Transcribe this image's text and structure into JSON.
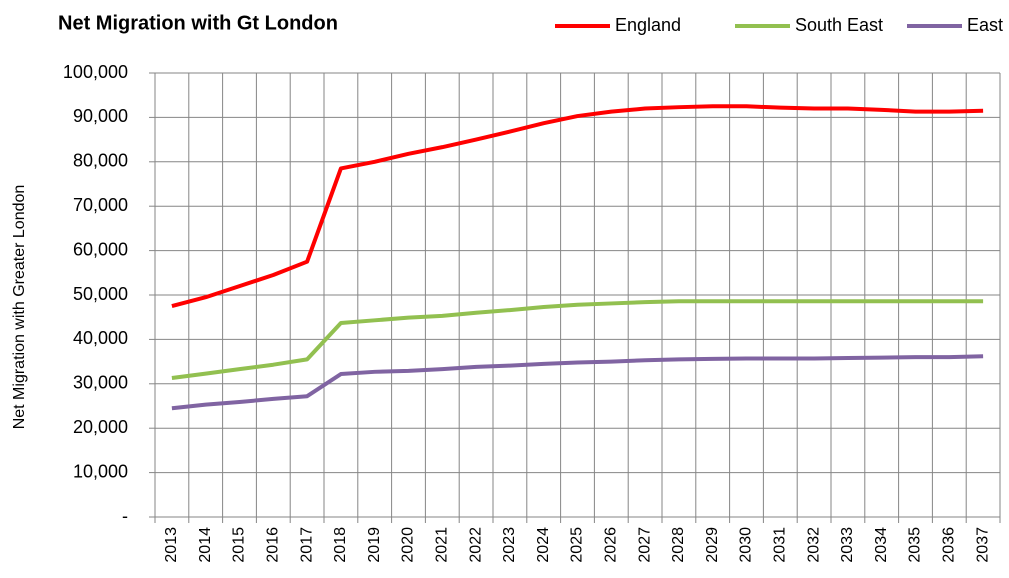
{
  "chart_data": {
    "type": "line",
    "title": "Net Migration with Gt London",
    "y_axis_label": "Net Migration with Greater London",
    "categories": [
      "2013",
      "2014",
      "2015",
      "2016",
      "2017",
      "2018",
      "2019",
      "2020",
      "2021",
      "2022",
      "2023",
      "2024",
      "2025",
      "2026",
      "2027",
      "2028",
      "2029",
      "2030",
      "2031",
      "2032",
      "2033",
      "2034",
      "2035",
      "2036",
      "2037"
    ],
    "series": [
      {
        "name": "England",
        "color": "#ff0000",
        "values": [
          47500,
          49500,
          52000,
          54500,
          57500,
          78500,
          80000,
          81800,
          83300,
          85000,
          86800,
          88700,
          90300,
          91300,
          92000,
          92300,
          92500,
          92500,
          92200,
          92000,
          92000,
          91700,
          91300,
          91300,
          91500
        ]
      },
      {
        "name": "South East",
        "color": "#92c050",
        "values": [
          31300,
          32300,
          33300,
          34300,
          35500,
          43700,
          44300,
          44900,
          45300,
          46000,
          46600,
          47300,
          47800,
          48100,
          48400,
          48600,
          48600,
          48600,
          48600,
          48600,
          48600,
          48600,
          48600,
          48600,
          48600
        ]
      },
      {
        "name": "East",
        "color": "#8064a2",
        "values": [
          24500,
          25300,
          25900,
          26600,
          27200,
          32200,
          32700,
          32900,
          33300,
          33800,
          34100,
          34500,
          34800,
          35000,
          35300,
          35500,
          35600,
          35700,
          35700,
          35700,
          35800,
          35900,
          36000,
          36000,
          36200
        ]
      }
    ],
    "ylim": [
      0,
      100000
    ],
    "yticks": [
      {
        "value": 0,
        "label": "-"
      },
      {
        "value": 10000,
        "label": "10,000"
      },
      {
        "value": 20000,
        "label": "20,000"
      },
      {
        "value": 30000,
        "label": "30,000"
      },
      {
        "value": 40000,
        "label": "40,000"
      },
      {
        "value": 50000,
        "label": "50,000"
      },
      {
        "value": 60000,
        "label": "60,000"
      },
      {
        "value": 70000,
        "label": "70,000"
      },
      {
        "value": 80000,
        "label": "80,000"
      },
      {
        "value": 90000,
        "label": "90,000"
      },
      {
        "value": 100000,
        "label": "100,000"
      }
    ],
    "grid": true,
    "legend": "top"
  }
}
